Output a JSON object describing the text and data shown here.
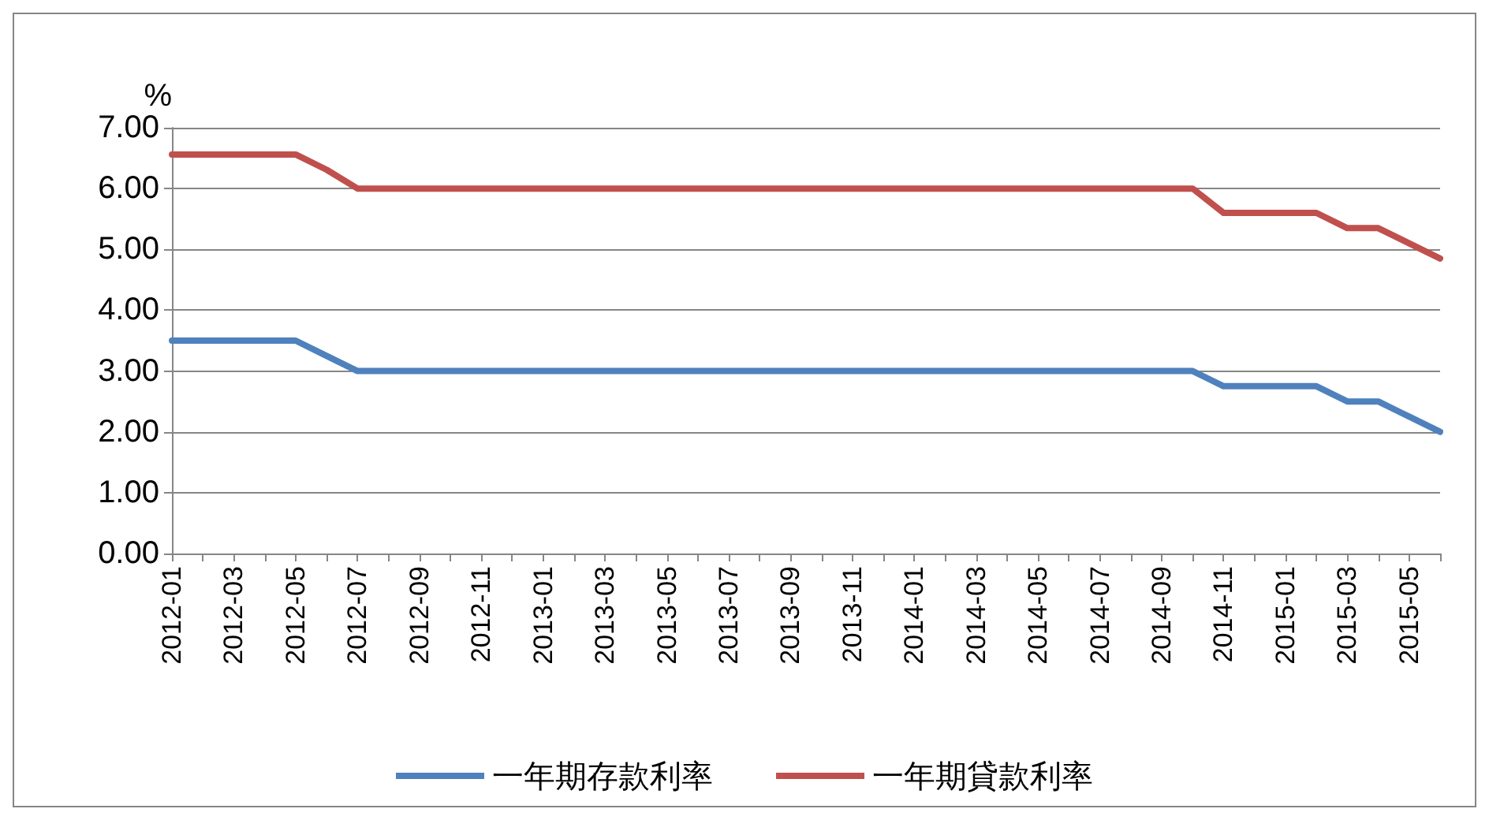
{
  "chart_data": {
    "type": "line",
    "ylabel": "%",
    "categories": [
      "2012-01",
      null,
      "2012-03",
      null,
      "2012-05",
      null,
      "2012-07",
      null,
      "2012-09",
      null,
      "2012-11",
      null,
      "2013-01",
      null,
      "2013-03",
      null,
      "2013-05",
      null,
      "2013-07",
      null,
      "2013-09",
      null,
      "2013-11",
      null,
      "2014-01",
      null,
      "2014-03",
      null,
      "2014-05",
      null,
      "2014-07",
      null,
      "2014-09",
      null,
      "2014-11",
      null,
      "2015-01",
      null,
      "2015-03",
      null,
      "2015-05",
      null
    ],
    "series": [
      {
        "name": "一年期存款利率",
        "color": "#4f81bd",
        "values": [
          3.5,
          3.5,
          3.5,
          3.5,
          3.5,
          3.25,
          3,
          3,
          3,
          3,
          3,
          3,
          3,
          3,
          3,
          3,
          3,
          3,
          3,
          3,
          3,
          3,
          3,
          3,
          3,
          3,
          3,
          3,
          3,
          3,
          3,
          3,
          3,
          3,
          2.75,
          2.75,
          2.75,
          2.75,
          2.5,
          2.5,
          2.25,
          2
        ]
      },
      {
        "name": "一年期貸款利率",
        "color": "#c0504d",
        "values": [
          6.56,
          6.56,
          6.56,
          6.56,
          6.56,
          6.31,
          6,
          6,
          6,
          6,
          6,
          6,
          6,
          6,
          6,
          6,
          6,
          6,
          6,
          6,
          6,
          6,
          6,
          6,
          6,
          6,
          6,
          6,
          6,
          6,
          6,
          6,
          6,
          6,
          5.6,
          5.6,
          5.6,
          5.6,
          5.35,
          5.35,
          5.1,
          4.85
        ]
      }
    ],
    "ylim": [
      0,
      7
    ],
    "yticks": [
      {
        "value": 0,
        "label": "0.00"
      },
      {
        "value": 1,
        "label": "1.00"
      },
      {
        "value": 2,
        "label": "2.00"
      },
      {
        "value": 3,
        "label": "3.00"
      },
      {
        "value": 4,
        "label": "4.00"
      },
      {
        "value": 5,
        "label": "5.00"
      },
      {
        "value": 6,
        "label": "6.00"
      },
      {
        "value": 7,
        "label": "7.00"
      }
    ],
    "grid": "y",
    "legend": "bottom",
    "marker": "none",
    "line_style": "solid"
  }
}
